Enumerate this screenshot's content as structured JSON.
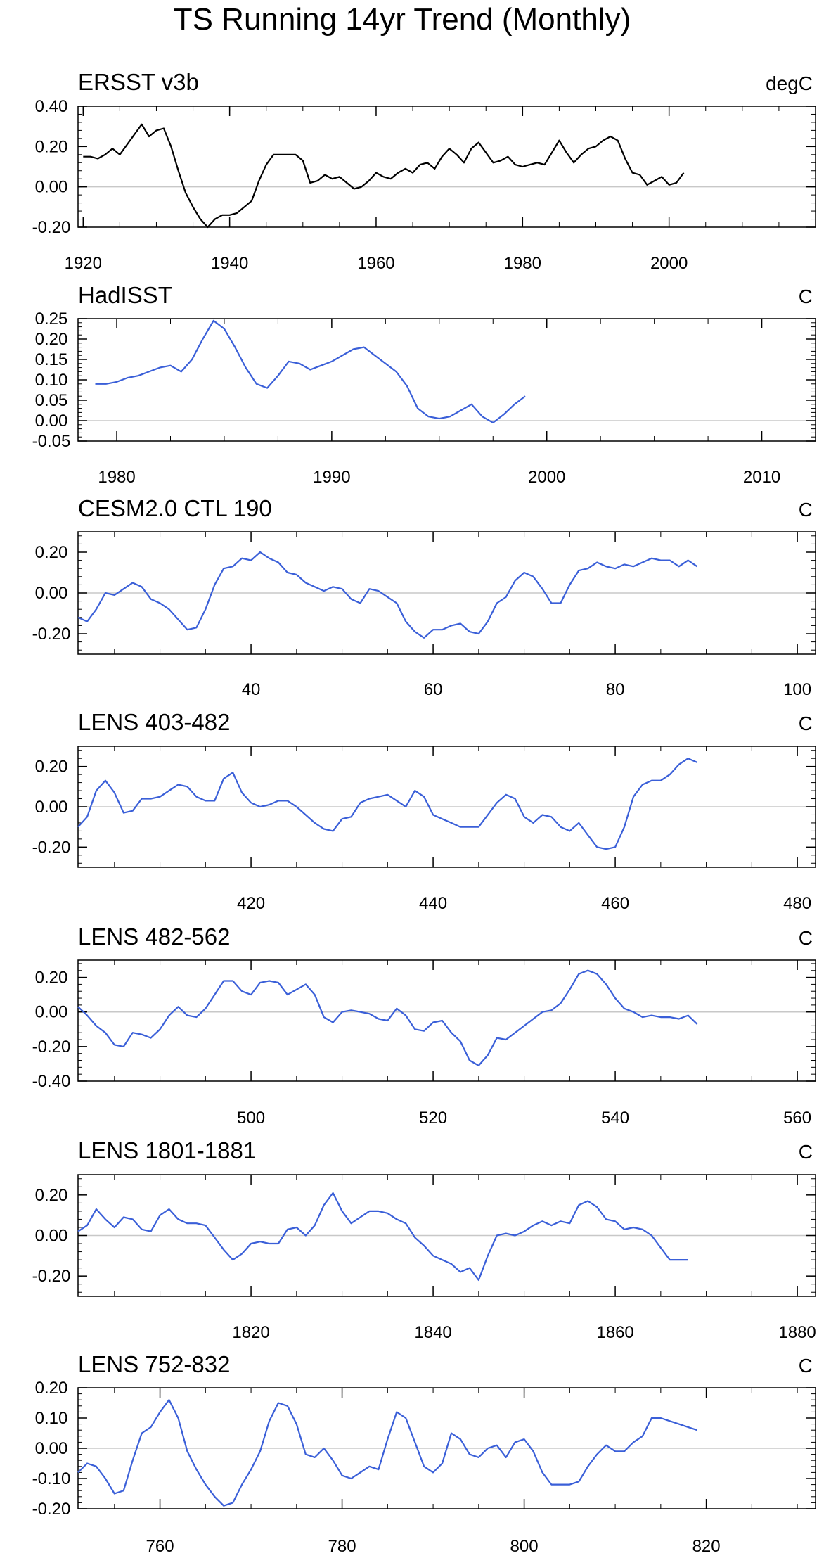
{
  "figure_title": "TS Running 14yr Trend (Monthly)",
  "colors": {
    "black": "#000000",
    "blue": "#3a5fd8",
    "zero_line": "#c8c8c8",
    "frame": "#000000"
  },
  "chart_data": [
    {
      "type": "line",
      "title": "ERSST v3b",
      "units": "degC",
      "line_color": "#000000",
      "xlim": [
        1919.3,
        2020
      ],
      "ylim": [
        -0.2,
        0.4
      ],
      "xticks": [
        1920,
        1940,
        1960,
        1980,
        2000
      ],
      "xtick_labels": [
        "1920",
        "1940",
        "1960",
        "1980",
        "2000"
      ],
      "yticks": [
        -0.2,
        0,
        0.2,
        0.4
      ],
      "ytick_labels": [
        "-0.20",
        "0.00",
        "0.20",
        "0.40"
      ],
      "x": [
        1920,
        1921,
        1922,
        1923,
        1924,
        1925,
        1926,
        1927,
        1928,
        1929,
        1930,
        1931,
        1932,
        1933,
        1934,
        1935,
        1936,
        1937,
        1938,
        1939,
        1940,
        1941,
        1942,
        1943,
        1944,
        1945,
        1946,
        1947,
        1948,
        1949,
        1950,
        1951,
        1952,
        1953,
        1954,
        1955,
        1956,
        1957,
        1958,
        1959,
        1960,
        1961,
        1962,
        1963,
        1964,
        1965,
        1966,
        1967,
        1968,
        1969,
        1970,
        1971,
        1972,
        1973,
        1974,
        1975,
        1976,
        1977,
        1978,
        1979,
        1980,
        1981,
        1982,
        1983,
        1984,
        1985,
        1986,
        1987,
        1988,
        1989,
        1990,
        1991,
        1992,
        1993,
        1994,
        1995,
        1996,
        1997,
        1998,
        1999,
        2000,
        2001,
        2002
      ],
      "y": [
        0.15,
        0.15,
        0.14,
        0.16,
        0.19,
        0.16,
        0.21,
        0.26,
        0.31,
        0.25,
        0.28,
        0.29,
        0.2,
        0.08,
        -0.03,
        -0.1,
        -0.16,
        -0.2,
        -0.16,
        -0.14,
        -0.14,
        -0.13,
        -0.1,
        -0.07,
        0.03,
        0.11,
        0.16,
        0.16,
        0.16,
        0.16,
        0.13,
        0.02,
        0.03,
        0.06,
        0.04,
        0.05,
        0.02,
        -0.01,
        0.0,
        0.03,
        0.07,
        0.05,
        0.04,
        0.07,
        0.09,
        0.07,
        0.11,
        0.12,
        0.09,
        0.15,
        0.19,
        0.16,
        0.12,
        0.19,
        0.22,
        0.17,
        0.12,
        0.13,
        0.15,
        0.11,
        0.1,
        0.11,
        0.12,
        0.11,
        0.17,
        0.23,
        0.17,
        0.12,
        0.16,
        0.19,
        0.2,
        0.23,
        0.25,
        0.23,
        0.14,
        0.07,
        0.06,
        0.01,
        0.03,
        0.05,
        0.01,
        0.02,
        0.07
      ]
    },
    {
      "type": "line",
      "title": "HadISST",
      "units": "C",
      "line_color": "#3a5fd8",
      "xlim": [
        1978.2,
        2012.5
      ],
      "ylim": [
        -0.05,
        0.25
      ],
      "xticks": [
        1980,
        1990,
        2000,
        2010
      ],
      "xtick_labels": [
        "1980",
        "1990",
        "2000",
        "2010"
      ],
      "yticks": [
        -0.05,
        0,
        0.05,
        0.1,
        0.15,
        0.2,
        0.25
      ],
      "ytick_labels": [
        "-0.05",
        "0.00",
        "0.05",
        "0.10",
        "0.15",
        "0.20",
        "0.25"
      ],
      "x": [
        1979,
        1979.5,
        1980,
        1980.5,
        1981,
        1981.5,
        1982,
        1982.5,
        1983,
        1983.5,
        1984,
        1984.5,
        1985,
        1985.5,
        1986,
        1986.5,
        1987,
        1987.5,
        1988,
        1988.5,
        1989,
        1989.5,
        1990,
        1990.5,
        1991,
        1991.5,
        1992,
        1992.5,
        1993,
        1993.5,
        1994,
        1994.5,
        1995,
        1995.5,
        1996,
        1996.5,
        1997,
        1997.5,
        1998,
        1998.5,
        1999
      ],
      "y": [
        0.09,
        0.09,
        0.095,
        0.105,
        0.11,
        0.12,
        0.13,
        0.135,
        0.12,
        0.15,
        0.2,
        0.245,
        0.225,
        0.18,
        0.13,
        0.09,
        0.08,
        0.11,
        0.145,
        0.14,
        0.125,
        0.135,
        0.145,
        0.16,
        0.175,
        0.18,
        0.16,
        0.14,
        0.12,
        0.085,
        0.03,
        0.01,
        0.005,
        0.01,
        0.025,
        0.04,
        0.01,
        -0.005,
        0.015,
        0.04,
        0.06
      ]
    },
    {
      "type": "line",
      "title": "CESM2.0 CTL 190",
      "units": "C",
      "line_color": "#3a5fd8",
      "xlim": [
        21,
        102
      ],
      "ylim": [
        -0.3,
        0.3
      ],
      "xticks": [
        40,
        60,
        80,
        100
      ],
      "xtick_labels": [
        "40",
        "60",
        "80",
        "100"
      ],
      "yticks": [
        -0.2,
        0,
        0.2
      ],
      "ytick_labels": [
        "-0.20",
        "0.00",
        "0.20"
      ],
      "x": [
        21,
        22,
        23,
        24,
        25,
        26,
        27,
        28,
        29,
        30,
        31,
        32,
        33,
        34,
        35,
        36,
        37,
        38,
        39,
        40,
        41,
        42,
        43,
        44,
        45,
        46,
        47,
        48,
        49,
        50,
        51,
        52,
        53,
        54,
        55,
        56,
        57,
        58,
        59,
        60,
        61,
        62,
        63,
        64,
        65,
        66,
        67,
        68,
        69,
        70,
        71,
        72,
        73,
        74,
        75,
        76,
        77,
        78,
        79,
        80,
        81,
        82,
        83,
        84,
        85,
        86,
        87,
        88,
        89
      ],
      "y": [
        -0.12,
        -0.14,
        -0.08,
        0.0,
        -0.01,
        0.02,
        0.05,
        0.03,
        -0.03,
        -0.05,
        -0.08,
        -0.13,
        -0.18,
        -0.17,
        -0.08,
        0.04,
        0.12,
        0.13,
        0.17,
        0.16,
        0.2,
        0.17,
        0.15,
        0.1,
        0.09,
        0.05,
        0.03,
        0.01,
        0.03,
        0.02,
        -0.03,
        -0.05,
        0.02,
        0.01,
        -0.02,
        -0.05,
        -0.14,
        -0.19,
        -0.22,
        -0.18,
        -0.18,
        -0.16,
        -0.15,
        -0.19,
        -0.2,
        -0.14,
        -0.05,
        -0.02,
        0.06,
        0.1,
        0.08,
        0.02,
        -0.05,
        -0.05,
        0.04,
        0.11,
        0.12,
        0.15,
        0.13,
        0.12,
        0.14,
        0.13,
        0.15,
        0.17,
        0.16,
        0.16,
        0.13,
        0.16,
        0.13
      ]
    },
    {
      "type": "line",
      "title": "LENS 403-482",
      "units": "C",
      "line_color": "#3a5fd8",
      "xlim": [
        401,
        482
      ],
      "ylim": [
        -0.3,
        0.3
      ],
      "xticks": [
        420,
        440,
        460,
        480
      ],
      "xtick_labels": [
        "420",
        "440",
        "460",
        "480"
      ],
      "yticks": [
        -0.2,
        0,
        0.2
      ],
      "ytick_labels": [
        "-0.20",
        "0.00",
        "0.20"
      ],
      "x": [
        401,
        402,
        403,
        404,
        405,
        406,
        407,
        408,
        409,
        410,
        411,
        412,
        413,
        414,
        415,
        416,
        417,
        418,
        419,
        420,
        421,
        422,
        423,
        424,
        425,
        426,
        427,
        428,
        429,
        430,
        431,
        432,
        433,
        434,
        435,
        436,
        437,
        438,
        439,
        440,
        441,
        442,
        443,
        444,
        445,
        446,
        447,
        448,
        449,
        450,
        451,
        452,
        453,
        454,
        455,
        456,
        457,
        458,
        459,
        460,
        461,
        462,
        463,
        464,
        465,
        466,
        467,
        468,
        469
      ],
      "y": [
        -0.1,
        -0.05,
        0.08,
        0.13,
        0.07,
        -0.03,
        -0.02,
        0.04,
        0.04,
        0.05,
        0.08,
        0.11,
        0.1,
        0.05,
        0.03,
        0.03,
        0.14,
        0.17,
        0.07,
        0.02,
        0.0,
        0.01,
        0.03,
        0.03,
        0.0,
        -0.04,
        -0.08,
        -0.11,
        -0.12,
        -0.06,
        -0.05,
        0.02,
        0.04,
        0.05,
        0.06,
        0.03,
        0.0,
        0.08,
        0.05,
        -0.04,
        -0.06,
        -0.08,
        -0.1,
        -0.1,
        -0.1,
        -0.04,
        0.02,
        0.06,
        0.04,
        -0.05,
        -0.08,
        -0.04,
        -0.05,
        -0.1,
        -0.12,
        -0.08,
        -0.14,
        -0.2,
        -0.21,
        -0.2,
        -0.1,
        0.05,
        0.11,
        0.13,
        0.13,
        0.16,
        0.21,
        0.24,
        0.22
      ]
    },
    {
      "type": "line",
      "title": "LENS 482-562",
      "units": "C",
      "line_color": "#3a5fd8",
      "xlim": [
        481,
        562
      ],
      "ylim": [
        -0.4,
        0.3
      ],
      "xticks": [
        500,
        520,
        540,
        560
      ],
      "xtick_labels": [
        "500",
        "520",
        "540",
        "560"
      ],
      "yticks": [
        -0.4,
        -0.2,
        0,
        0.2
      ],
      "ytick_labels": [
        "-0.40",
        "-0.20",
        "0.00",
        "0.20"
      ],
      "x": [
        481,
        482,
        483,
        484,
        485,
        486,
        487,
        488,
        489,
        490,
        491,
        492,
        493,
        494,
        495,
        496,
        497,
        498,
        499,
        500,
        501,
        502,
        503,
        504,
        505,
        506,
        507,
        508,
        509,
        510,
        511,
        512,
        513,
        514,
        515,
        516,
        517,
        518,
        519,
        520,
        521,
        522,
        523,
        524,
        525,
        526,
        527,
        528,
        529,
        530,
        531,
        532,
        533,
        534,
        535,
        536,
        537,
        538,
        539,
        540,
        541,
        542,
        543,
        544,
        545,
        546,
        547,
        548,
        549
      ],
      "y": [
        0.03,
        -0.02,
        -0.08,
        -0.12,
        -0.19,
        -0.2,
        -0.12,
        -0.13,
        -0.15,
        -0.1,
        -0.02,
        0.03,
        -0.02,
        -0.03,
        0.02,
        0.1,
        0.18,
        0.18,
        0.12,
        0.1,
        0.17,
        0.18,
        0.17,
        0.1,
        0.13,
        0.16,
        0.1,
        -0.03,
        -0.06,
        0.0,
        0.01,
        0.0,
        -0.01,
        -0.04,
        -0.05,
        0.02,
        -0.02,
        -0.1,
        -0.11,
        -0.06,
        -0.05,
        -0.12,
        -0.17,
        -0.28,
        -0.31,
        -0.25,
        -0.15,
        -0.16,
        -0.12,
        -0.08,
        -0.04,
        0.0,
        0.01,
        0.05,
        0.13,
        0.22,
        0.24,
        0.22,
        0.16,
        0.08,
        0.02,
        0.0,
        -0.03,
        -0.02,
        -0.03,
        -0.03,
        -0.04,
        -0.02,
        -0.07
      ]
    },
    {
      "type": "line",
      "title": "LENS 1801-1881",
      "units": "C",
      "line_color": "#3a5fd8",
      "xlim": [
        1801,
        1882
      ],
      "ylim": [
        -0.3,
        0.3
      ],
      "xticks": [
        1820,
        1840,
        1860,
        1880
      ],
      "xtick_labels": [
        "1820",
        "1840",
        "1860",
        "1880"
      ],
      "yticks": [
        -0.2,
        0,
        0.2
      ],
      "ytick_labels": [
        "-0.20",
        "0.00",
        "0.20"
      ],
      "x": [
        1801,
        1802,
        1803,
        1804,
        1805,
        1806,
        1807,
        1808,
        1809,
        1810,
        1811,
        1812,
        1813,
        1814,
        1815,
        1816,
        1817,
        1818,
        1819,
        1820,
        1821,
        1822,
        1823,
        1824,
        1825,
        1826,
        1827,
        1828,
        1829,
        1830,
        1831,
        1832,
        1833,
        1834,
        1835,
        1836,
        1837,
        1838,
        1839,
        1840,
        1841,
        1842,
        1843,
        1844,
        1845,
        1846,
        1847,
        1848,
        1849,
        1850,
        1851,
        1852,
        1853,
        1854,
        1855,
        1856,
        1857,
        1858,
        1859,
        1860,
        1861,
        1862,
        1863,
        1864,
        1865,
        1866,
        1867,
        1868
      ],
      "y": [
        0.02,
        0.05,
        0.13,
        0.08,
        0.04,
        0.09,
        0.08,
        0.03,
        0.02,
        0.1,
        0.13,
        0.08,
        0.06,
        0.06,
        0.05,
        -0.01,
        -0.07,
        -0.12,
        -0.09,
        -0.04,
        -0.03,
        -0.04,
        -0.04,
        0.03,
        0.04,
        0.0,
        0.05,
        0.15,
        0.21,
        0.12,
        0.06,
        0.09,
        0.12,
        0.12,
        0.11,
        0.08,
        0.06,
        -0.01,
        -0.05,
        -0.1,
        -0.12,
        -0.14,
        -0.18,
        -0.16,
        -0.22,
        -0.1,
        0.0,
        0.01,
        0.0,
        0.02,
        0.05,
        0.07,
        0.05,
        0.07,
        0.06,
        0.15,
        0.17,
        0.14,
        0.08,
        0.07,
        0.03,
        0.04,
        0.03,
        0.0,
        -0.06,
        -0.12,
        -0.12,
        -0.12
      ]
    },
    {
      "type": "line",
      "title": "LENS 752-832",
      "units": "C",
      "line_color": "#3a5fd8",
      "xlim": [
        751,
        832
      ],
      "ylim": [
        -0.2,
        0.2
      ],
      "xticks": [
        760,
        780,
        800,
        820
      ],
      "xtick_labels": [
        "760",
        "780",
        "800",
        "820"
      ],
      "yticks": [
        -0.2,
        -0.1,
        0,
        0.1,
        0.2
      ],
      "ytick_labels": [
        "-0.20",
        "-0.10",
        "0.00",
        "0.10",
        "0.20"
      ],
      "x": [
        751,
        752,
        753,
        754,
        755,
        756,
        757,
        758,
        759,
        760,
        761,
        762,
        763,
        764,
        765,
        766,
        767,
        768,
        769,
        770,
        771,
        772,
        773,
        774,
        775,
        776,
        777,
        778,
        779,
        780,
        781,
        782,
        783,
        784,
        785,
        786,
        787,
        788,
        789,
        790,
        791,
        792,
        793,
        794,
        795,
        796,
        797,
        798,
        799,
        800,
        801,
        802,
        803,
        804,
        805,
        806,
        807,
        808,
        809,
        810,
        811,
        812,
        813,
        814,
        815,
        816,
        817,
        818,
        819
      ],
      "y": [
        -0.08,
        -0.05,
        -0.06,
        -0.1,
        -0.15,
        -0.14,
        -0.04,
        0.05,
        0.07,
        0.12,
        0.16,
        0.1,
        -0.01,
        -0.07,
        -0.12,
        -0.16,
        -0.19,
        -0.18,
        -0.12,
        -0.07,
        -0.01,
        0.09,
        0.15,
        0.14,
        0.08,
        -0.02,
        -0.03,
        0.0,
        -0.04,
        -0.09,
        -0.1,
        -0.08,
        -0.06,
        -0.07,
        0.03,
        0.12,
        0.1,
        0.02,
        -0.06,
        -0.08,
        -0.05,
        0.05,
        0.03,
        -0.02,
        -0.03,
        0.0,
        0.01,
        -0.03,
        0.02,
        0.03,
        -0.01,
        -0.08,
        -0.12,
        -0.12,
        -0.12,
        -0.11,
        -0.06,
        -0.02,
        0.01,
        -0.01,
        -0.01,
        0.02,
        0.04,
        0.1,
        0.1,
        0.09,
        0.08,
        0.07,
        0.06
      ]
    }
  ]
}
